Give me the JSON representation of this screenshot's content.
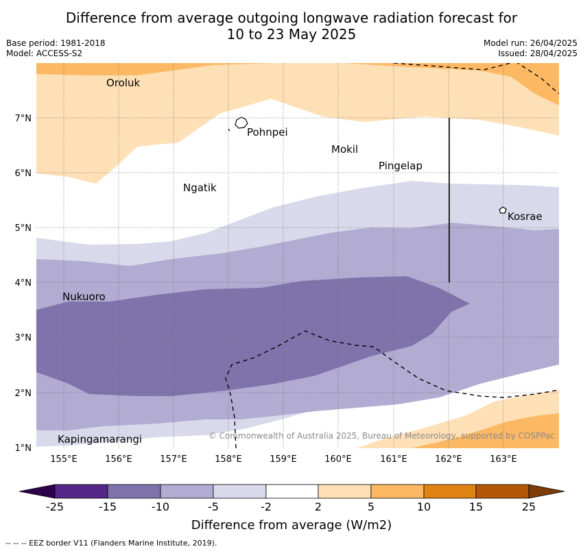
{
  "title": {
    "line1": "Difference from average outgoing longwave radiation forecast for",
    "line2": "10 to 23 May 2025"
  },
  "meta": {
    "base_period": "Base period: 1981-2018",
    "model": "Model: ACCESS-S2",
    "model_run": "Model run: 26/04/2025",
    "issued": "Issued: 28/04/2025"
  },
  "map": {
    "lat_labels": [
      "7°N",
      "6°N",
      "5°N",
      "4°N",
      "3°N",
      "2°N",
      "1°N"
    ],
    "lon_labels": [
      "155°E",
      "156°E",
      "157°E",
      "158°E",
      "159°E",
      "160°E",
      "161°E",
      "162°E",
      "163°E"
    ],
    "places": {
      "oroluk": "Oroluk",
      "pohnpei": "Pohnpei",
      "mokil": "Mokil",
      "pingelap": "Pingelap",
      "ngatik": "Ngatik",
      "kosrae": "Kosrae",
      "nukuoro": "Nukuoro",
      "kapingamarangi": "Kapingamarangi"
    },
    "copyright": "© Commonwealth of Australia 2025, Bureau of Meteorology, supported by COSPPac"
  },
  "colorbar": {
    "ticks": [
      "-25",
      "-15",
      "-10",
      "-5",
      "-2",
      "2",
      "5",
      "10",
      "15",
      "25"
    ],
    "label": "Difference from average (W/m2)",
    "colors": [
      "#2d004b",
      "#542788",
      "#8073ac",
      "#b2abd2",
      "#d8daeb",
      "#ffffff",
      "#fee0b6",
      "#fdb863",
      "#e08214",
      "#b35806",
      "#7f3b08"
    ]
  },
  "footnote": "--  --  -- EEZ border V11 (Flanders Marine Institute, 2019)."
}
